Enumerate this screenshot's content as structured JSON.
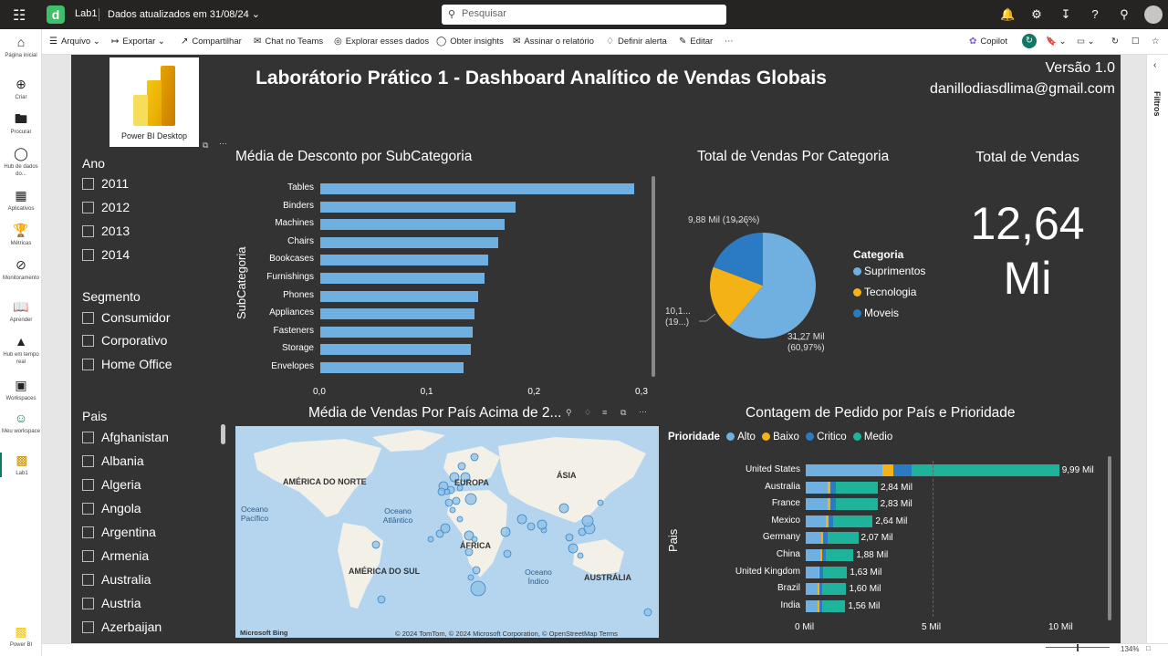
{
  "app": {
    "workspace": "Lab1",
    "updated": "Dados atualizados em 31/08/24",
    "search_placeholder": "Pesquisar"
  },
  "leftnav": [
    {
      "label": "Página inicial",
      "icon": "home-icon"
    },
    {
      "label": "Criar",
      "icon": "plus-icon"
    },
    {
      "label": "Procurar",
      "icon": "folder-icon"
    },
    {
      "label": "Hub de dados do...",
      "icon": "data-hub-icon"
    },
    {
      "label": "Aplicativos",
      "icon": "apps-icon"
    },
    {
      "label": "Métricas",
      "icon": "trophy-icon"
    },
    {
      "label": "Monitoramento",
      "icon": "monitor-icon"
    },
    {
      "label": "Aprender",
      "icon": "book-icon"
    },
    {
      "label": "Hub em tempo real",
      "icon": "rocket-icon"
    },
    {
      "label": "Workspaces",
      "icon": "workspaces-icon"
    },
    {
      "label": "Meu workspace",
      "icon": "person-icon"
    },
    {
      "label": "Lab1",
      "icon": "report-icon"
    },
    {
      "label": "Power BI",
      "icon": "powerbi-icon"
    }
  ],
  "commands": {
    "arquivo": "Arquivo",
    "exportar": "Exportar",
    "compartilhar": "Compartilhar",
    "chat": "Chat no Teams",
    "explorar": "Explorar esses dados",
    "insights": "Obter insights",
    "assinar": "Assinar o relatório",
    "alerta": "Definir alerta",
    "editar": "Editar",
    "copilot": "Copilot"
  },
  "filters_label": "Filtros",
  "zoom": "134%",
  "report": {
    "logo_text": "Power BI Desktop",
    "title": "Laborátorio Prático 1 - Dashboard Analítico de Vendas Globais",
    "version": "Versão 1.0",
    "email": "danillodiasdlima@gmail.com"
  },
  "slicers": {
    "ano": {
      "title": "Ano",
      "items": [
        "2011",
        "2012",
        "2013",
        "2014"
      ]
    },
    "segmento": {
      "title": "Segmento",
      "items": [
        "Consumidor",
        "Corporativo",
        "Home Office"
      ]
    },
    "pais": {
      "title": "Pais",
      "items": [
        "Afghanistan",
        "Albania",
        "Algeria",
        "Angola",
        "Argentina",
        "Armenia",
        "Australia",
        "Austria",
        "Azerbaijan"
      ]
    }
  },
  "chart_data": [
    {
      "type": "bar",
      "orientation": "horizontal",
      "title": "Média de Desconto por SubCategoria",
      "ylabel": "SubCategoria",
      "categories": [
        "Tables",
        "Binders",
        "Machines",
        "Chairs",
        "Bookcases",
        "Furnishings",
        "Phones",
        "Appliances",
        "Fasteners",
        "Storage",
        "Envelopes"
      ],
      "values": [
        0.29,
        0.18,
        0.17,
        0.164,
        0.155,
        0.152,
        0.146,
        0.142,
        0.141,
        0.139,
        0.132
      ],
      "xlim": [
        0,
        0.3
      ],
      "xticks": [
        "0,0",
        "0,1",
        "0,2",
        "0,3"
      ],
      "color": "#6fb0e1"
    },
    {
      "type": "pie",
      "title": "Total de Vendas Por Categoria",
      "legend_title": "Categoria",
      "labels": [
        "Suprimentos",
        "Tecnologia",
        "Moveis"
      ],
      "values": [
        31.27,
        10.1,
        9.88
      ],
      "data_labels": [
        "31,27 Mil (60,97%)",
        "10,1... (19...)",
        "9,88 Mil (19,26%)"
      ],
      "colors": [
        "#6fb0e1",
        "#f5b216",
        "#2a7bc4"
      ]
    },
    {
      "type": "bar",
      "orientation": "horizontal",
      "stacked": true,
      "title": "Contagem de Pedido por País e Prioridade",
      "legend_title": "Prioridade",
      "ylabel": "Pais",
      "categories": [
        "United States",
        "Australia",
        "France",
        "Mexico",
        "Germany",
        "China",
        "United Kingdom",
        "Brazil",
        "India"
      ],
      "totals_labels": [
        "9,99 Mil",
        "2,84 Mil",
        "2,83 Mil",
        "2,64 Mil",
        "2,07 Mil",
        "1,88 Mil",
        "1,63 Mil",
        "1,60 Mil",
        "1,56 Mil"
      ],
      "series": [
        {
          "name": "Alto",
          "color": "#6fb0e1",
          "values": [
            3020,
            860,
            850,
            790,
            620,
            560,
            490,
            480,
            470
          ]
        },
        {
          "name": "Baixo",
          "color": "#f5b216",
          "values": [
            420,
            110,
            110,
            100,
            80,
            75,
            65,
            65,
            60
          ]
        },
        {
          "name": "Critico",
          "color": "#2a7bc4",
          "values": [
            750,
            210,
            210,
            200,
            155,
            140,
            120,
            120,
            115
          ]
        },
        {
          "name": "Medio",
          "color": "#1fb39b",
          "values": [
            5800,
            1660,
            1660,
            1550,
            1215,
            1105,
            955,
            935,
            915
          ]
        }
      ],
      "xlim": [
        0,
        10000
      ],
      "xticks": [
        "0 Mil",
        "5 Mil",
        "10 Mil"
      ]
    }
  ],
  "kpi": {
    "title": "Total de Vendas",
    "value": "12,64",
    "unit": "Mi"
  },
  "map": {
    "title": "Média de Vendas Por País Acima de 2...",
    "continents": [
      "AMÉRICA DO NORTE",
      "EUROPA",
      "ÁSIA",
      "ÁFRICA",
      "AMÉRICA DO SUL",
      "AUSTRÁLIA"
    ],
    "oceans": [
      "Oceano Pacífico",
      "Oceano Atlântico",
      "Oceano Índico"
    ],
    "credit": "© 2024 TomTom, © 2024 Microsoft Corporation, © OpenStreetMap  Terms",
    "brand": "Microsoft Bing"
  }
}
